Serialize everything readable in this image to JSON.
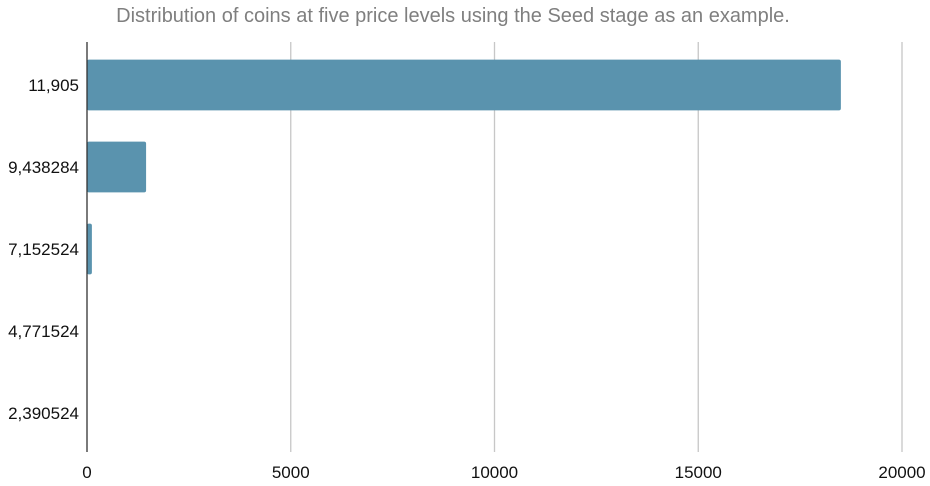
{
  "chart_data": {
    "type": "bar",
    "orientation": "horizontal",
    "title": "Distribution of coins at five price levels using the Seed stage as an example.",
    "xlabel": "",
    "ylabel": "",
    "categories": [
      "11,905",
      "9,438284",
      "7,152524",
      "4,771524",
      "2,390524"
    ],
    "values": [
      18500,
      1450,
      120,
      0,
      0
    ],
    "xlim": [
      0,
      20000
    ],
    "x_ticks": [
      "0",
      "5000",
      "10000",
      "15000",
      "20000"
    ],
    "x_tick_values": [
      0,
      5000,
      10000,
      15000,
      20000
    ],
    "grid": true,
    "legend": "none",
    "bar_color": "#5a93ae"
  }
}
